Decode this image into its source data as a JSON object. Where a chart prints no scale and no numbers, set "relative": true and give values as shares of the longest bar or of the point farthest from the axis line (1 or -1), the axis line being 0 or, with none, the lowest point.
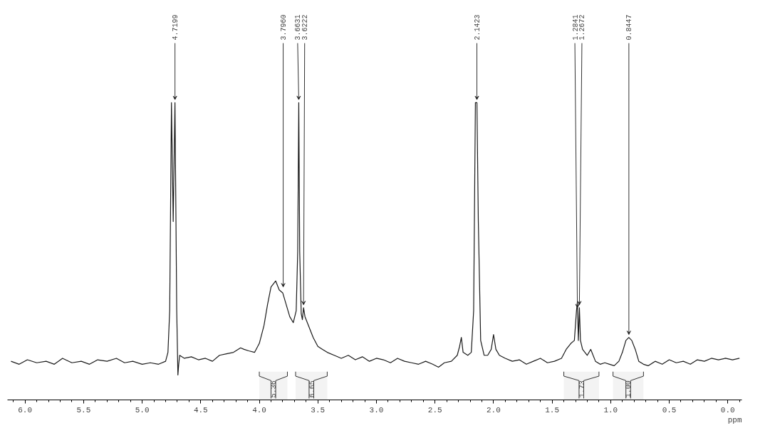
{
  "chart_data": {
    "type": "line",
    "relative": true,
    "xlabel": "ppm",
    "color": "#1a1a1a",
    "line_style": "solid",
    "marker": "none",
    "grid": false,
    "tick_labels": "x",
    "xlim": [
      6.15,
      -0.12
    ],
    "xticks": [
      {
        "value": 6.0,
        "label": "6.0"
      },
      {
        "value": 5.5,
        "label": "5.5"
      },
      {
        "value": 5.0,
        "label": "5.0"
      },
      {
        "value": 4.5,
        "label": "4.5"
      },
      {
        "value": 4.0,
        "label": "4.0"
      },
      {
        "value": 3.5,
        "label": "3.5"
      },
      {
        "value": 3.0,
        "label": "3.0"
      },
      {
        "value": 2.5,
        "label": "2.5"
      },
      {
        "value": 2.0,
        "label": "2.0"
      },
      {
        "value": 1.5,
        "label": "1.5"
      },
      {
        "value": 1.0,
        "label": "1.0"
      },
      {
        "value": 0.5,
        "label": "0.5"
      },
      {
        "value": 0.0,
        "label": "0.0"
      }
    ],
    "x": [
      6.12,
      6.05,
      5.98,
      5.9,
      5.82,
      5.75,
      5.68,
      5.6,
      5.52,
      5.45,
      5.38,
      5.3,
      5.22,
      5.15,
      5.08,
      5.0,
      4.93,
      4.86,
      4.8,
      4.78,
      4.765,
      4.75,
      4.735,
      4.72,
      4.705,
      4.695,
      4.688,
      4.68,
      4.64,
      4.58,
      4.52,
      4.46,
      4.4,
      4.34,
      4.28,
      4.22,
      4.16,
      4.13,
      4.09,
      4.04,
      4.0,
      3.96,
      3.93,
      3.9,
      3.86,
      3.83,
      3.8,
      3.77,
      3.74,
      3.71,
      3.685,
      3.672,
      3.663,
      3.655,
      3.642,
      3.632,
      3.622,
      3.61,
      3.58,
      3.54,
      3.5,
      3.46,
      3.42,
      3.36,
      3.3,
      3.24,
      3.18,
      3.12,
      3.06,
      3.0,
      2.94,
      2.88,
      2.82,
      2.76,
      2.7,
      2.64,
      2.58,
      2.52,
      2.47,
      2.42,
      2.36,
      2.31,
      2.29,
      2.275,
      2.26,
      2.22,
      2.19,
      2.17,
      2.155,
      2.142,
      2.13,
      2.11,
      2.08,
      2.05,
      2.02,
      2.0,
      1.98,
      1.95,
      1.9,
      1.84,
      1.78,
      1.72,
      1.66,
      1.6,
      1.54,
      1.48,
      1.42,
      1.38,
      1.34,
      1.31,
      1.292,
      1.284,
      1.276,
      1.267,
      1.258,
      1.24,
      1.2,
      1.17,
      1.13,
      1.09,
      1.05,
      1.01,
      0.97,
      0.93,
      0.9,
      0.87,
      0.845,
      0.82,
      0.79,
      0.76,
      0.72,
      0.68,
      0.62,
      0.56,
      0.5,
      0.44,
      0.38,
      0.32,
      0.26,
      0.2,
      0.14,
      0.08,
      0.02,
      -0.04,
      -0.1
    ],
    "values": [
      0.13,
      0.12,
      0.135,
      0.125,
      0.13,
      0.12,
      0.14,
      0.125,
      0.13,
      0.12,
      0.135,
      0.13,
      0.14,
      0.125,
      0.13,
      0.12,
      0.125,
      0.12,
      0.13,
      0.16,
      0.3,
      1.0,
      0.6,
      1.0,
      0.3,
      0.084,
      0.12,
      0.15,
      0.14,
      0.145,
      0.135,
      0.14,
      0.13,
      0.15,
      0.155,
      0.16,
      0.175,
      0.17,
      0.165,
      0.16,
      0.19,
      0.25,
      0.32,
      0.38,
      0.4,
      0.37,
      0.36,
      0.32,
      0.28,
      0.26,
      0.3,
      0.5,
      1.0,
      0.5,
      0.29,
      0.27,
      0.31,
      0.28,
      0.25,
      0.21,
      0.18,
      0.17,
      0.16,
      0.15,
      0.14,
      0.15,
      0.135,
      0.145,
      0.13,
      0.14,
      0.135,
      0.125,
      0.14,
      0.13,
      0.125,
      0.12,
      0.13,
      0.12,
      0.11,
      0.125,
      0.13,
      0.15,
      0.18,
      0.21,
      0.16,
      0.15,
      0.16,
      0.3,
      1.0,
      1.0,
      0.6,
      0.2,
      0.15,
      0.15,
      0.17,
      0.22,
      0.17,
      0.15,
      0.14,
      0.13,
      0.135,
      0.12,
      0.13,
      0.14,
      0.125,
      0.13,
      0.14,
      0.17,
      0.19,
      0.2,
      0.3,
      0.33,
      0.2,
      0.31,
      0.2,
      0.17,
      0.15,
      0.17,
      0.13,
      0.12,
      0.125,
      0.12,
      0.115,
      0.13,
      0.16,
      0.2,
      0.21,
      0.2,
      0.17,
      0.13,
      0.12,
      0.115,
      0.13,
      0.12,
      0.135,
      0.125,
      0.13,
      0.12,
      0.135,
      0.13,
      0.14,
      0.135,
      0.14,
      0.135,
      0.14
    ],
    "annotations": [
      {
        "text": "4.7199",
        "x": 4.7199,
        "y": 1.0
      },
      {
        "text": "3.7960",
        "x": 3.796,
        "y": 0.37
      },
      {
        "text": "3.6631",
        "x": 3.6631,
        "y": 1.0
      },
      {
        "text": "3.6222",
        "x": 3.6222,
        "y": 0.31
      },
      {
        "text": "2.1423",
        "x": 2.1423,
        "y": 1.0
      },
      {
        "text": "1.2841",
        "x": 1.2841,
        "y": 0.3
      },
      {
        "text": "1.2672",
        "x": 1.2672,
        "y": 0.31
      },
      {
        "text": "0.8447",
        "x": 0.8447,
        "y": 0.21
      }
    ],
    "bands": [
      {
        "axis": "x",
        "from": 4.0,
        "to": 3.76,
        "label": "5.36"
      },
      {
        "axis": "x",
        "from": 3.69,
        "to": 3.42,
        "label": "6.65"
      },
      {
        "axis": "x",
        "from": 1.4,
        "to": 1.1,
        "label": "1.73"
      },
      {
        "axis": "x",
        "from": 0.98,
        "to": 0.72,
        "label": "1.00"
      }
    ]
  }
}
